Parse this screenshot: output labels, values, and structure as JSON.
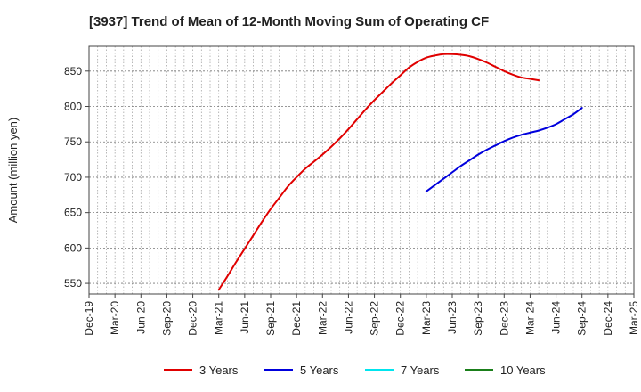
{
  "chart_data": {
    "type": "line",
    "title": "[3937]  Trend of Mean of 12-Month Moving Sum of Operating CF",
    "xlabel": "",
    "ylabel": "Amount (million yen)",
    "ylim": [
      535,
      885
    ],
    "yticks": [
      550,
      600,
      650,
      700,
      750,
      800,
      850
    ],
    "x_tick_labels": [
      "Dec-19",
      "Mar-20",
      "Jun-20",
      "Sep-20",
      "Dec-20",
      "Mar-21",
      "Jun-21",
      "Sep-21",
      "Dec-21",
      "Mar-22",
      "Jun-22",
      "Sep-22",
      "Dec-22",
      "Mar-23",
      "Jun-23",
      "Sep-23",
      "Dec-23",
      "Mar-24",
      "Jun-24",
      "Sep-24",
      "Dec-24",
      "Mar-25"
    ],
    "x_range_months": [
      0,
      63
    ],
    "grid": true,
    "legend_position": "bottom",
    "series": [
      {
        "name": "3 Years",
        "color": "#e00000",
        "points": [
          [
            15,
            541
          ],
          [
            16,
            560
          ],
          [
            17,
            580
          ],
          [
            18,
            599
          ],
          [
            19,
            618
          ],
          [
            20,
            637
          ],
          [
            21,
            655
          ],
          [
            22,
            671
          ],
          [
            23,
            687
          ],
          [
            24,
            700
          ],
          [
            25,
            712
          ],
          [
            26,
            722
          ],
          [
            27,
            732
          ],
          [
            28,
            743
          ],
          [
            29,
            755
          ],
          [
            30,
            768
          ],
          [
            31,
            782
          ],
          [
            32,
            796
          ],
          [
            33,
            809
          ],
          [
            34,
            821
          ],
          [
            35,
            833
          ],
          [
            36,
            844
          ],
          [
            37,
            855
          ],
          [
            38,
            863
          ],
          [
            39,
            869
          ],
          [
            40,
            872
          ],
          [
            41,
            874
          ],
          [
            42,
            874
          ],
          [
            43,
            873
          ],
          [
            44,
            871
          ],
          [
            45,
            867
          ],
          [
            46,
            862
          ],
          [
            47,
            856
          ],
          [
            48,
            850
          ],
          [
            49,
            845
          ],
          [
            50,
            841
          ],
          [
            51,
            839
          ],
          [
            52,
            837
          ]
        ]
      },
      {
        "name": "5 Years",
        "color": "#0000dd",
        "points": [
          [
            39,
            680
          ],
          [
            40,
            689
          ],
          [
            41,
            698
          ],
          [
            42,
            707
          ],
          [
            43,
            716
          ],
          [
            44,
            724
          ],
          [
            45,
            732
          ],
          [
            46,
            739
          ],
          [
            47,
            745
          ],
          [
            48,
            751
          ],
          [
            49,
            756
          ],
          [
            50,
            760
          ],
          [
            51,
            763
          ],
          [
            52,
            766
          ],
          [
            53,
            770
          ],
          [
            54,
            775
          ],
          [
            55,
            782
          ],
          [
            56,
            789
          ],
          [
            57,
            798
          ]
        ]
      },
      {
        "name": "7 Years",
        "color": "#00e5ee",
        "points": []
      },
      {
        "name": "10 Years",
        "color": "#1a7f1a",
        "points": []
      }
    ]
  }
}
